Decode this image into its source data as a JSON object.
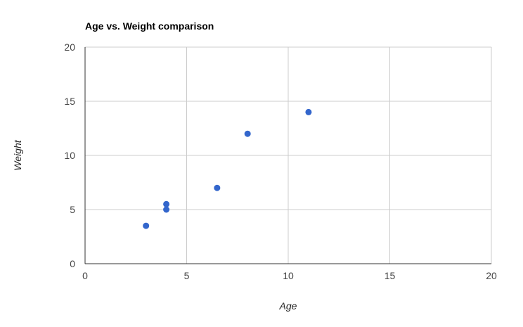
{
  "chart_data": {
    "type": "scatter",
    "title": "Age vs. Weight comparison",
    "xlabel": "Age",
    "ylabel": "Weight",
    "xlim": [
      0,
      20
    ],
    "ylim": [
      0,
      20
    ],
    "x_ticks": [
      0,
      5,
      10,
      15,
      20
    ],
    "y_ticks": [
      0,
      5,
      10,
      15,
      20
    ],
    "grid": true,
    "legend": "none",
    "point_color": "#3366cc",
    "points": [
      {
        "x": 3,
        "y": 3.5
      },
      {
        "x": 4,
        "y": 5
      },
      {
        "x": 4,
        "y": 5.5
      },
      {
        "x": 6.5,
        "y": 7
      },
      {
        "x": 8,
        "y": 12
      },
      {
        "x": 11,
        "y": 14
      }
    ]
  }
}
